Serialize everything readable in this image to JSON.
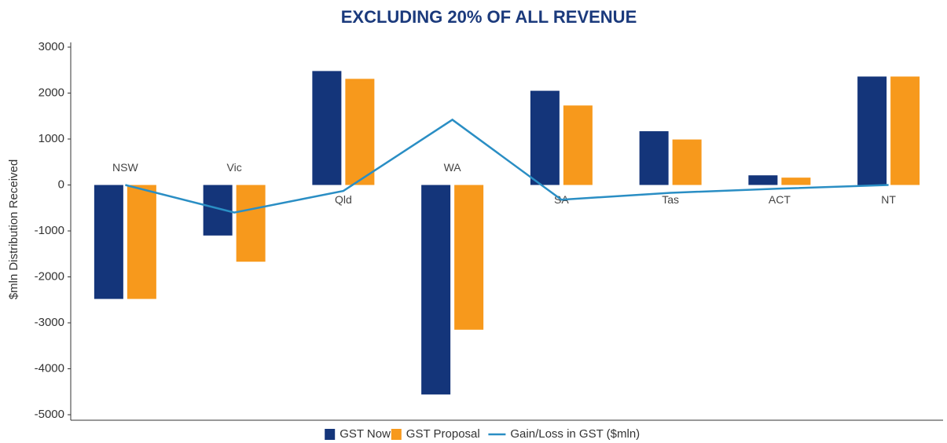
{
  "chart_data": {
    "type": "bar_line",
    "title": "EXCLUDING 20% OF ALL REVENUE",
    "y_label": "$mln Distribution Received",
    "categories": [
      "NSW",
      "Vic",
      "Qld",
      "WA",
      "SA",
      "Tas",
      "ACT",
      "NT"
    ],
    "series": [
      {
        "name": "GST Now",
        "type": "bar",
        "color": "#14357a",
        "values": [
          -2480,
          -1100,
          2480,
          -4560,
          2050,
          1170,
          210,
          2360
        ]
      },
      {
        "name": "GST Proposal",
        "type": "bar",
        "color": "#f7991c",
        "values": [
          -2480,
          -1670,
          2310,
          -3150,
          1730,
          990,
          160,
          2360
        ]
      },
      {
        "name": "Gain/Loss in GST ($mln)",
        "type": "line",
        "color": "#2a8ec4",
        "values": [
          0,
          -600,
          -130,
          1420,
          -320,
          -170,
          -80,
          0
        ]
      }
    ],
    "ylim": [
      -5000,
      3000
    ],
    "yticks": [
      3000,
      2000,
      1000,
      0,
      -1000,
      -2000,
      -3000,
      -4000,
      -5000
    ],
    "legend": "bottom"
  }
}
